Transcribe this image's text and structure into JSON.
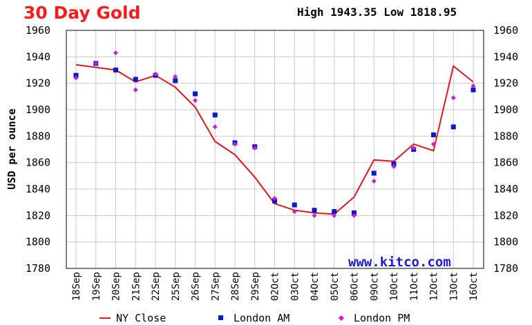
{
  "title": "30 Day Gold",
  "high_low": "High 1943.35 Low 1818.95",
  "watermark": "www.kitco.com",
  "colors": {
    "title": "#ff1a1a",
    "ny_close": "#e8141b",
    "london_am": "#0a18c8",
    "london_pm": "#d01ad8",
    "watermark": "#1a1ad8",
    "grid": "#c8c8c8"
  },
  "chart_data": {
    "type": "line",
    "title": "30 Day Gold",
    "ylabel": "USD per ounce",
    "xlabel": "",
    "ylim": [
      1780,
      1960
    ],
    "yticks": [
      1780,
      1800,
      1820,
      1840,
      1860,
      1880,
      1900,
      1920,
      1940,
      1960
    ],
    "grid": true,
    "legend_position": "bottom",
    "categories": [
      "18Sep",
      "19Sep",
      "20Sep",
      "21Sep",
      "22Sep",
      "25Sep",
      "26Sep",
      "27Sep",
      "28Sep",
      "29Sep",
      "02Oct",
      "03Oct",
      "04Oct",
      "05Oct",
      "06Oct",
      "09Oct",
      "10Oct",
      "11Oct",
      "12Oct",
      "13Oct",
      "16Oct"
    ],
    "category_labels": [
      "18Sep",
      "19Sep",
      "20Sep",
      "21Sep",
      "22Sep",
      "25Sep",
      "26Sep",
      "27Sep",
      "28Sep",
      "29Sep",
      "02Oct",
      "03Oct",
      "04Oct",
      "05Oct",
      "06Oct",
      "09Oct",
      "10Oct",
      "11Oct",
      "12Oct",
      "13Oct",
      "16Oct"
    ],
    "series": [
      {
        "name": "NY Close",
        "kind": "line",
        "values": [
          1934,
          1932,
          1930,
          1921,
          1926,
          1917,
          1902,
          1876,
          1866,
          1849,
          1829,
          1824,
          1822,
          1821,
          1834,
          1862,
          1861,
          1874,
          1869,
          1933,
          1921
        ]
      },
      {
        "name": "London AM",
        "kind": "square",
        "values": [
          1926,
          1935,
          1930,
          1923,
          1926,
          1922,
          1912,
          1896,
          1875,
          1872,
          1831,
          1828,
          1824,
          1823,
          1822,
          1852,
          1859,
          1870,
          1881,
          1887,
          1915
        ]
      },
      {
        "name": "London PM",
        "kind": "diamond",
        "values": [
          1924,
          1935,
          1943,
          1915,
          1927,
          1925,
          1907,
          1887,
          1874,
          1871,
          1833,
          1823,
          1820,
          1820,
          1820,
          1846,
          1857,
          1871,
          1874,
          1909,
          1918
        ]
      }
    ]
  }
}
